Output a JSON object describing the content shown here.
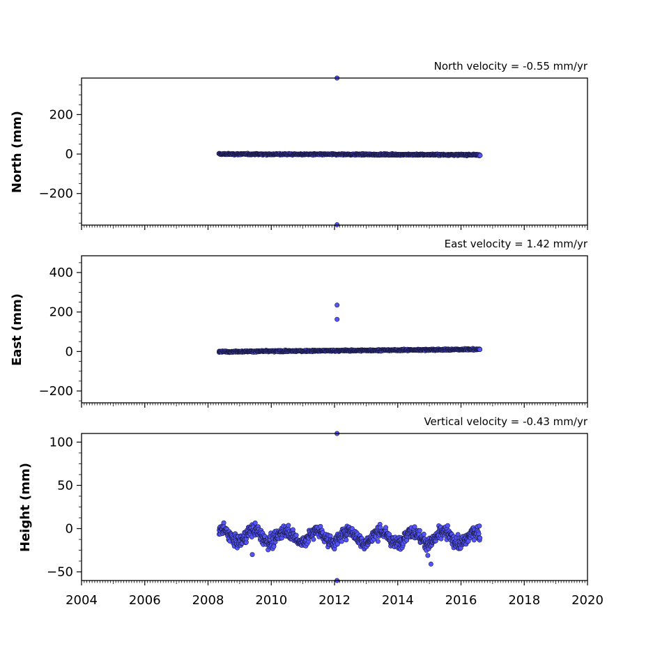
{
  "chart_data": [
    {
      "type": "scatter",
      "title": "North velocity = -0.55 mm/yr",
      "xlabel": "",
      "ylabel": "North (mm)",
      "xlim": [
        2004,
        2020
      ],
      "ylim": [
        -360,
        385
      ],
      "xticks": [
        "2004",
        "2006",
        "2008",
        "2010",
        "2012",
        "2014",
        "2016",
        "2018",
        "2020"
      ],
      "yticks": [
        -200,
        0,
        200
      ],
      "ytick_labels": [
        "−200",
        "0",
        "200"
      ],
      "color": "#5555ff",
      "series": [
        {
          "x_range": [
            2008.35,
            2016.6
          ],
          "trend_start": 0,
          "trend_end": -4,
          "noise": 3,
          "outliers": [
            [
              2012.08,
              385
            ],
            [
              2012.08,
              -358
            ]
          ]
        }
      ]
    },
    {
      "type": "scatter",
      "title": "East velocity = 1.42 mm/yr",
      "xlabel": "",
      "ylabel": "East (mm)",
      "xlim": [
        2004,
        2020
      ],
      "ylim": [
        -260,
        485
      ],
      "xticks": [
        "2004",
        "2006",
        "2008",
        "2010",
        "2012",
        "2014",
        "2016",
        "2018",
        "2020"
      ],
      "yticks": [
        -200,
        0,
        200,
        400
      ],
      "ytick_labels": [
        "−200",
        "0",
        "200",
        "400"
      ],
      "color": "#5555ff",
      "series": [
        {
          "x_range": [
            2008.35,
            2016.6
          ],
          "trend_start": -1,
          "trend_end": 11,
          "noise": 3,
          "outliers": [
            [
              2012.08,
              235
            ],
            [
              2012.08,
              163
            ]
          ]
        }
      ]
    },
    {
      "type": "scatter",
      "title": "Vertical velocity = -0.43 mm/yr",
      "xlabel": "",
      "ylabel": "Height (mm)",
      "xlim": [
        2004,
        2020
      ],
      "ylim": [
        -60,
        110
      ],
      "xticks": [
        "2004",
        "2006",
        "2008",
        "2010",
        "2012",
        "2014",
        "2016",
        "2018",
        "2020"
      ],
      "yticks": [
        -50,
        0,
        50,
        100
      ],
      "ytick_labels": [
        "−50",
        "0",
        "50",
        "100"
      ],
      "color": "#5555ff",
      "series": [
        {
          "x_range": [
            2008.35,
            2016.6
          ],
          "trend_start": -8,
          "trend_end": -11,
          "seasonal_amplitude": 7,
          "noise": 6,
          "outliers": [
            [
              2012.08,
              110
            ],
            [
              2012.08,
              -60
            ],
            [
              2015.05,
              -41
            ],
            [
              2014.95,
              -31
            ],
            [
              2009.4,
              -30
            ]
          ]
        }
      ]
    }
  ]
}
